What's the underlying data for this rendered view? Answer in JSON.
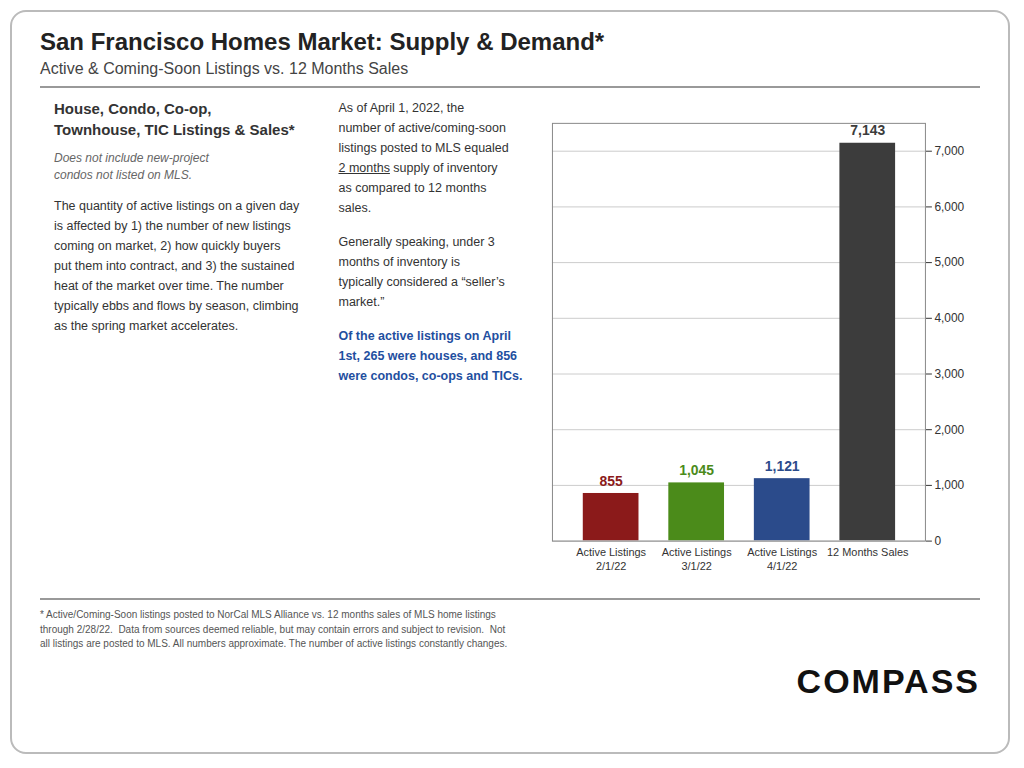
{
  "chart_data": {
    "type": "bar",
    "title": "San Francisco Homes Market: Supply & Demand*",
    "subtitle": "Active & Coming-Soon Listings vs. 12 Months Sales",
    "categories": [
      "Active Listings\n2/1/22",
      "Active Listings\n3/1/22",
      "Active Listings\n4/1/22",
      "12 Months Sales"
    ],
    "values": [
      855,
      1045,
      1121,
      7143
    ],
    "value_labels": [
      "855",
      "1,045",
      "1,121",
      "7,143"
    ],
    "colors": [
      "#8B1A1A",
      "#4B8B1A",
      "#2B4B8B",
      "#3C3C3C"
    ],
    "ylim": [
      0,
      7500
    ],
    "yticks": [
      0,
      {
        "value": 1000,
        "label": "1,000"
      },
      {
        "value": 2000,
        "label": "2,000"
      },
      {
        "value": 3000,
        "label": "3,000"
      },
      {
        "value": 4000,
        "label": "4,000"
      },
      {
        "value": 5000,
        "label": "5,000"
      },
      {
        "value": 6000,
        "label": "6,000"
      },
      {
        "value": 7000,
        "label": "7,000"
      }
    ],
    "grid": true,
    "data_labels": true,
    "annotations": [
      "House, Condo, Co-op,\nTownhouse, TIC Listings & Sales*",
      "Does not include new-project\ncondos not listed on MLS.",
      "The quantity of active listings on a given day\nis affected by 1) the number of new listings\ncoming on market, 2) how quickly buyers\nput them into contract, and 3) the sustained\nheat of the market over time. The number\ntypically ebbs and flows by season, climbing\nas the spring market accelerates.",
      "As of April 1, 2022, the\nnumber of active/coming-soon\nlistings posted to MLS equaled",
      "2 months",
      " supply of inventory\nas compared to 12 months\nsales.",
      "Generally speaking, under 3\nmonths of inventory is\ntypically considered a “seller’s\nmarket.”",
      "Of the active listings on April\n1st, 265 were houses, and 856\nwere condos, co-ops and TICs.",
      "* Active/Coming-Soon listings posted to NorCal MLS Alliance vs. 12 months sales of MLS home listings\nthrough 2/28/22.  Data from sources deemed reliable, but may contain errors and subject to revision.  Not\nall listings are posted to MLS. All numbers approximate. The number of active listings constantly changes.",
      "COMPASS"
    ]
  }
}
